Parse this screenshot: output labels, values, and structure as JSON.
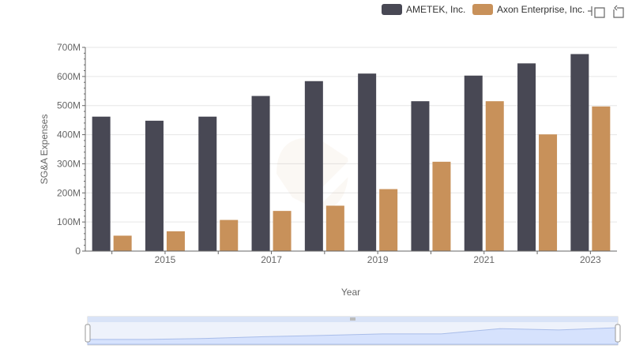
{
  "chart_data": {
    "type": "bar",
    "x": [
      2014,
      2015,
      2016,
      2017,
      2018,
      2019,
      2020,
      2021,
      2022,
      2023
    ],
    "x_tick_labels": [
      "2015",
      "2017",
      "2019",
      "2021",
      "2023"
    ],
    "xlabel": "Year",
    "ylabel": "SG&A Expenses",
    "ylim": [
      0,
      700000000
    ],
    "y_tick_labels": [
      "0",
      "100M",
      "200M",
      "300M",
      "400M",
      "500M",
      "600M",
      "700M"
    ],
    "grid": true,
    "legend_position": "top-right",
    "series": [
      {
        "name": "AMETEK, Inc.",
        "color": "#484854",
        "values": [
          462000000,
          448000000,
          462000000,
          533000000,
          584000000,
          610000000,
          515000000,
          603000000,
          645000000,
          677000000
        ]
      },
      {
        "name": "Axon Enterprise, Inc.",
        "color": "#c8915a",
        "values": [
          53000000,
          68000000,
          107000000,
          138000000,
          156000000,
          213000000,
          307000000,
          515000000,
          401000000,
          497000000
        ]
      }
    ]
  },
  "toolbar": {
    "zoom_icon": "zoom-icon",
    "reset_icon": "reset-icon"
  },
  "range_slider": {
    "fill_color": "#d6e2fd",
    "line_color": "#a9bde9"
  }
}
